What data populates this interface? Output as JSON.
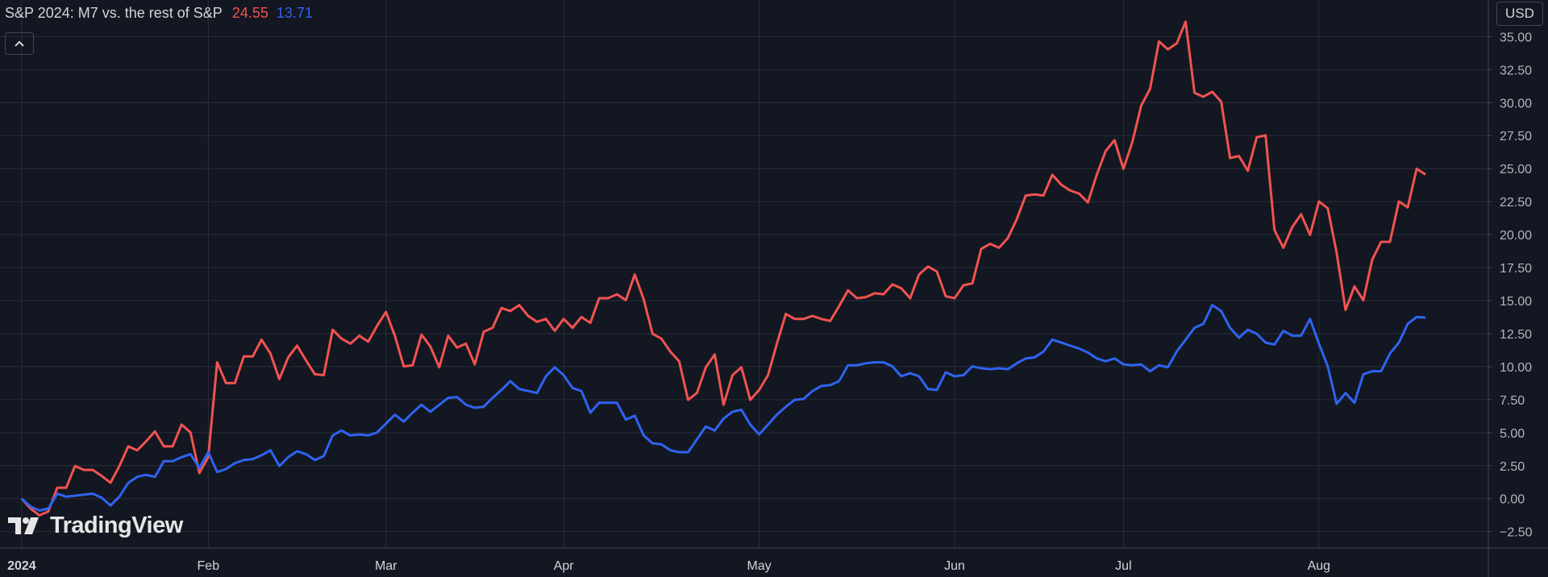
{
  "chart_data": {
    "type": "line",
    "title": "S&P 2024: M7 vs. the rest of S&P",
    "currency": "USD",
    "watermark": "TradingView",
    "x": [
      0,
      1,
      2,
      3,
      4,
      5,
      6,
      7,
      8,
      9,
      10,
      11,
      12,
      13,
      14,
      15,
      16,
      17,
      18,
      19,
      20,
      21,
      22,
      23,
      24,
      25,
      26,
      27,
      28,
      29,
      30,
      31,
      32,
      33,
      34,
      35,
      36,
      37,
      38,
      39,
      40,
      41,
      42,
      43,
      44,
      45,
      46,
      47,
      48,
      49,
      50,
      51,
      52,
      53,
      54,
      55,
      56,
      57,
      58,
      59,
      60,
      61,
      62,
      63,
      64,
      65,
      66,
      67,
      68,
      69,
      70,
      71,
      72,
      73,
      74,
      75,
      76,
      77,
      78,
      79,
      80,
      81,
      82,
      83,
      84,
      85,
      86,
      87,
      88,
      89,
      90,
      91,
      92,
      93,
      94,
      95,
      96,
      97,
      98,
      99,
      100,
      101,
      102,
      103,
      104,
      105,
      106,
      107,
      108,
      109,
      110,
      111,
      112,
      113,
      114,
      115,
      116,
      117,
      118,
      119,
      120,
      121,
      122,
      123,
      124,
      125,
      126,
      127,
      128,
      129,
      130,
      131,
      132,
      133,
      134,
      135,
      136,
      137,
      138,
      139,
      140,
      141,
      142,
      143,
      144,
      145,
      146,
      147,
      148,
      149,
      150,
      151,
      152,
      153,
      154,
      155,
      156,
      157,
      158
    ],
    "series": [
      {
        "color": "#f05350",
        "values": [
          0,
          -0.75,
          -1.27,
          -0.97,
          0.82,
          0.82,
          2.47,
          2.17,
          2.17,
          1.72,
          1.2,
          2.47,
          3.96,
          3.66,
          4.34,
          5.09,
          3.96,
          3.96,
          5.61,
          5.01,
          1.94,
          3.14,
          10.32,
          8.75,
          8.75,
          10.77,
          10.77,
          12.04,
          10.99,
          9.05,
          10.7,
          11.59,
          10.47,
          9.42,
          9.35,
          12.79,
          12.12,
          11.74,
          12.34,
          11.89,
          13.09,
          14.14,
          12.34,
          10.02,
          10.1,
          12.42,
          11.52,
          9.95,
          12.34,
          11.44,
          11.74,
          10.17,
          12.64,
          12.94,
          14.44,
          14.21,
          14.66,
          13.84,
          13.39,
          13.61,
          12.71,
          13.61,
          12.94,
          13.76,
          13.31,
          15.18,
          15.18,
          15.48,
          15.03,
          16.98,
          15.11,
          12.49,
          12.12,
          11.14,
          10.4,
          7.48,
          8.0,
          9.95,
          10.92,
          7.11,
          9.35,
          9.95,
          7.48,
          8.23,
          9.35,
          11.74,
          13.99,
          13.61,
          13.61,
          13.84,
          13.61,
          13.46,
          14.58,
          15.78,
          15.18,
          15.26,
          15.56,
          15.48,
          16.23,
          15.93,
          15.18,
          16.98,
          17.58,
          17.2,
          15.33,
          15.18,
          16.16,
          16.31,
          18.92,
          19.3,
          19.0,
          19.75,
          21.17,
          22.96,
          23.04,
          22.96,
          24.53,
          23.78,
          23.34,
          23.11,
          22.44,
          24.53,
          26.33,
          27.15,
          24.98,
          27.0,
          29.77,
          31.04,
          34.63,
          34.03,
          34.48,
          36.13,
          30.74,
          30.44,
          30.82,
          30.07,
          25.8,
          25.95,
          24.83,
          27.37,
          27.52,
          20.34,
          19.0,
          20.57,
          21.54,
          19.97,
          22.51,
          21.99,
          18.62,
          14.29,
          16.08,
          15.03,
          18.1,
          19.45,
          19.45,
          22.51,
          22.06,
          24.98,
          24.55
        ]
      },
      {
        "color": "#2f63f0",
        "values": [
          0,
          -0.6,
          -0.9,
          -0.75,
          0.37,
          0.15,
          0.22,
          0.3,
          0.37,
          0.07,
          -0.52,
          0.15,
          1.2,
          1.65,
          1.8,
          1.65,
          2.84,
          2.84,
          3.14,
          3.37,
          2.32,
          3.52,
          2.02,
          2.24,
          2.69,
          2.92,
          2.99,
          3.29,
          3.66,
          2.47,
          3.14,
          3.59,
          3.37,
          2.92,
          3.22,
          4.79,
          5.16,
          4.79,
          4.86,
          4.79,
          5.01,
          5.68,
          6.36,
          5.83,
          6.51,
          7.11,
          6.58,
          7.11,
          7.63,
          7.7,
          7.11,
          6.88,
          6.96,
          7.63,
          8.23,
          8.9,
          8.3,
          8.15,
          8.0,
          9.27,
          9.95,
          9.35,
          8.38,
          8.15,
          6.51,
          7.26,
          7.26,
          7.26,
          5.98,
          6.28,
          4.79,
          4.19,
          4.11,
          3.66,
          3.52,
          3.52,
          4.49,
          5.46,
          5.16,
          6.06,
          6.58,
          6.73,
          5.61,
          4.86,
          5.61,
          6.36,
          6.96,
          7.48,
          7.55,
          8.15,
          8.53,
          8.6,
          8.9,
          10.1,
          10.1,
          10.25,
          10.32,
          10.32,
          10.02,
          9.27,
          9.5,
          9.27,
          8.3,
          8.23,
          9.57,
          9.27,
          9.35,
          10.02,
          9.87,
          9.8,
          9.87,
          9.8,
          10.25,
          10.62,
          10.7,
          11.14,
          12.04,
          11.82,
          11.59,
          11.37,
          11.07,
          10.62,
          10.4,
          10.62,
          10.17,
          10.1,
          10.17,
          9.65,
          10.1,
          9.95,
          11.14,
          12.04,
          12.94,
          13.24,
          14.66,
          14.21,
          12.94,
          12.19,
          12.79,
          12.49,
          11.82,
          11.67,
          12.71,
          12.34,
          12.34,
          13.61,
          11.74,
          10.02,
          7.18,
          8.0,
          7.26,
          9.42,
          9.65,
          9.65,
          10.99,
          11.82,
          13.24,
          13.76,
          13.71
        ]
      }
    ],
    "xlim": [
      -2.44,
      165.07
    ],
    "xticks": [
      {
        "value": 0,
        "label": "2024"
      },
      {
        "value": 21,
        "label": "Feb"
      },
      {
        "value": 41,
        "label": "Mar"
      },
      {
        "value": 61,
        "label": "Apr"
      },
      {
        "value": 83,
        "label": "May"
      },
      {
        "value": 105,
        "label": "Jun"
      },
      {
        "value": 124,
        "label": "Jul"
      },
      {
        "value": 146,
        "label": "Aug"
      }
    ],
    "ylim": [
      -3.74,
      37.77
    ],
    "yticks": [
      {
        "value": -2.5,
        "label": "−2.50"
      },
      {
        "value": 0,
        "label": "0.00"
      },
      {
        "value": 2.5,
        "label": "2.50"
      },
      {
        "value": 5,
        "label": "5.00"
      },
      {
        "value": 7.5,
        "label": "7.50"
      },
      {
        "value": 10,
        "label": "10.00"
      },
      {
        "value": 12.5,
        "label": "12.50"
      },
      {
        "value": 15,
        "label": "15.00"
      },
      {
        "value": 17.5,
        "label": "17.50"
      },
      {
        "value": 20,
        "label": "20.00"
      },
      {
        "value": 22.5,
        "label": "22.50"
      },
      {
        "value": 25,
        "label": "25.00"
      },
      {
        "value": 27.5,
        "label": "27.50"
      },
      {
        "value": 30,
        "label": "30.00"
      },
      {
        "value": 32.5,
        "label": "32.50"
      },
      {
        "value": 35,
        "label": "35.00"
      }
    ],
    "grid": true
  }
}
